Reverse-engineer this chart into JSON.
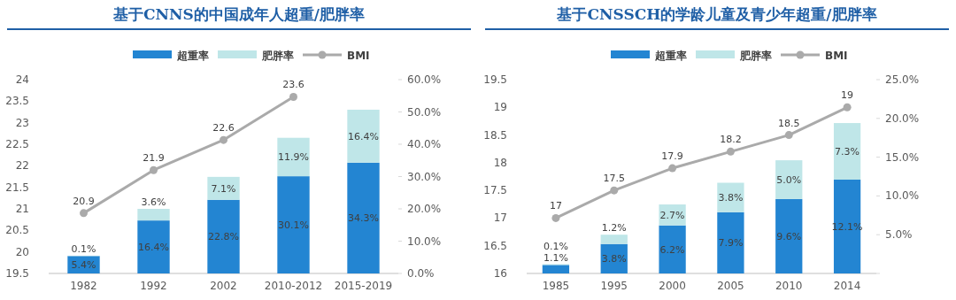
{
  "chart_data": [
    {
      "type": "bar",
      "title": "基于CNNS的中国成年人超重/肥胖率",
      "categories": [
        "1982",
        "1992",
        "2002",
        "2010-2012",
        "2015-2019"
      ],
      "stacked": true,
      "legend": "top",
      "grid": false,
      "series": [
        {
          "name": "超重率",
          "color": "#2385d2",
          "axis": "y2",
          "values": [
            5.4,
            16.4,
            22.8,
            30.1,
            34.3
          ],
          "value_labels": [
            "5.4%",
            "16.4%",
            "22.8%",
            "30.1%",
            "34.3%"
          ]
        },
        {
          "name": "肥胖率",
          "color": "#bfe6e8",
          "axis": "y2",
          "values": [
            0.1,
            3.6,
            7.1,
            11.9,
            16.4
          ],
          "value_labels": [
            "0.1%",
            "3.6%",
            "7.1%",
            "11.9%",
            "16.4%"
          ]
        },
        {
          "name": "BMI",
          "type": "line",
          "color": "#aaaaaa",
          "marker": "circle",
          "values": [
            20.9,
            21.9,
            22.6,
            23.6,
            null
          ],
          "value_labels": [
            "20.9",
            "21.9",
            "22.6",
            "23.6",
            null
          ]
        }
      ],
      "ylim": [
        19.5,
        24
      ],
      "yticks": [
        19.5,
        20,
        20.5,
        21,
        21.5,
        22,
        22.5,
        23,
        23.5,
        24
      ],
      "y2lim": [
        0,
        60
      ],
      "y2ticks": [
        {
          "value": 0,
          "label": "0.0%"
        },
        {
          "value": 10,
          "label": "10.0%"
        },
        {
          "value": 20,
          "label": "20.0%"
        },
        {
          "value": 30,
          "label": "30.0%"
        },
        {
          "value": 40,
          "label": "40.0%"
        },
        {
          "value": 50,
          "label": "50.0%"
        },
        {
          "value": 60,
          "label": "60.0%"
        }
      ]
    },
    {
      "type": "bar",
      "title": "基于CNSSCH的学龄儿童及青少年超重/肥胖率",
      "categories": [
        "1985",
        "1995",
        "2000",
        "2005",
        "2010",
        "2014"
      ],
      "stacked": true,
      "legend": "top",
      "grid": false,
      "series": [
        {
          "name": "超重率",
          "color": "#2385d2",
          "axis": "y2",
          "values": [
            1.1,
            3.8,
            6.2,
            7.9,
            9.6,
            12.1
          ],
          "value_labels": [
            "1.1%",
            "3.8%",
            "6.2%",
            "7.9%",
            "9.6%",
            "12.1%"
          ]
        },
        {
          "name": "肥胖率",
          "color": "#bfe6e8",
          "axis": "y2",
          "values": [
            0.1,
            1.2,
            2.7,
            3.8,
            5.0,
            7.3
          ],
          "value_labels": [
            "0.1%",
            "1.2%",
            "2.7%",
            "3.8%",
            "5.0%",
            "7.3%"
          ]
        },
        {
          "name": "BMI",
          "type": "line",
          "color": "#aaaaaa",
          "marker": "circle",
          "values": [
            17,
            17.5,
            17.9,
            18.2,
            18.5,
            19
          ],
          "value_labels": [
            "17",
            "17.5",
            "17.9",
            "18.2",
            "18.5",
            "19"
          ]
        }
      ],
      "ylim": [
        16,
        19.5
      ],
      "yticks": [
        16,
        16.5,
        17,
        17.5,
        18,
        18.5,
        19,
        19.5
      ],
      "y2lim": [
        0,
        25
      ],
      "y2ticks": [
        {
          "value": 0,
          "label": null
        },
        {
          "value": 5,
          "label": "5.0%"
        },
        {
          "value": 10,
          "label": "10.0%"
        },
        {
          "value": 15,
          "label": "15.0%"
        },
        {
          "value": 20,
          "label": "20.0%"
        },
        {
          "value": 25,
          "label": "25.0%"
        }
      ]
    }
  ]
}
